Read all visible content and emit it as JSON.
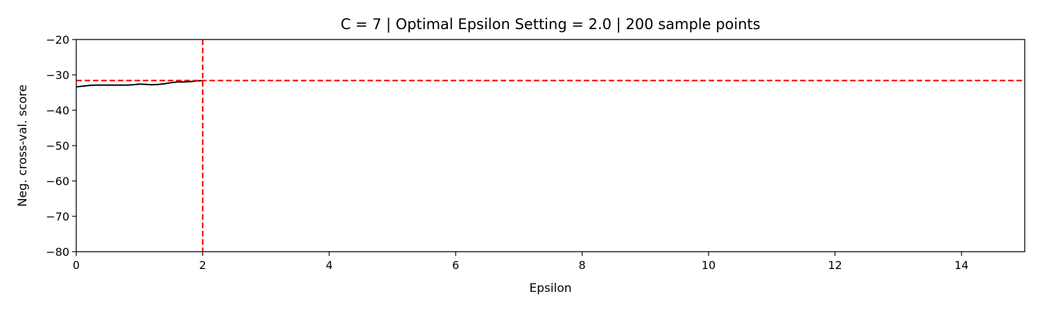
{
  "chart_data": {
    "type": "line",
    "title": "C = 7 | Optimal Epsilon Setting = 2.0 | 200 sample points",
    "xlabel": "Epsilon",
    "ylabel": "Neg. cross-val. score",
    "xlim": [
      0,
      15
    ],
    "ylim": [
      -80,
      -20
    ],
    "x_ticks": [
      0,
      2,
      4,
      6,
      8,
      10,
      12,
      14
    ],
    "x_tick_labels": [
      "0",
      "2",
      "4",
      "6",
      "8",
      "10",
      "12",
      "14"
    ],
    "y_ticks": [
      -80,
      -70,
      -60,
      -50,
      -40,
      -30,
      -20
    ],
    "y_tick_labels": [
      "−80",
      "−70",
      "−60",
      "−50",
      "−40",
      "−30",
      "−20"
    ],
    "grid": false,
    "series": [
      {
        "color": "#000000",
        "x": [
          0.0,
          0.1,
          0.2,
          0.3,
          0.4,
          0.5,
          0.6,
          0.7,
          0.8,
          0.9,
          1.0,
          1.1,
          1.2,
          1.3,
          1.4,
          1.5,
          1.6,
          1.7,
          1.8,
          1.9,
          2.0
        ],
        "y": [
          -33.4,
          -33.2,
          -33.0,
          -32.9,
          -32.9,
          -32.9,
          -32.9,
          -32.9,
          -32.9,
          -32.8,
          -32.6,
          -32.7,
          -32.8,
          -32.7,
          -32.5,
          -32.2,
          -32.0,
          -32.0,
          -31.9,
          -31.7,
          -31.6
        ]
      }
    ],
    "reference_lines": [
      {
        "orientation": "vertical",
        "value": 2.0,
        "color": "#ff0000",
        "style": "dashed"
      },
      {
        "orientation": "horizontal",
        "value": -31.6,
        "color": "#ff0000",
        "style": "dashed"
      }
    ]
  }
}
